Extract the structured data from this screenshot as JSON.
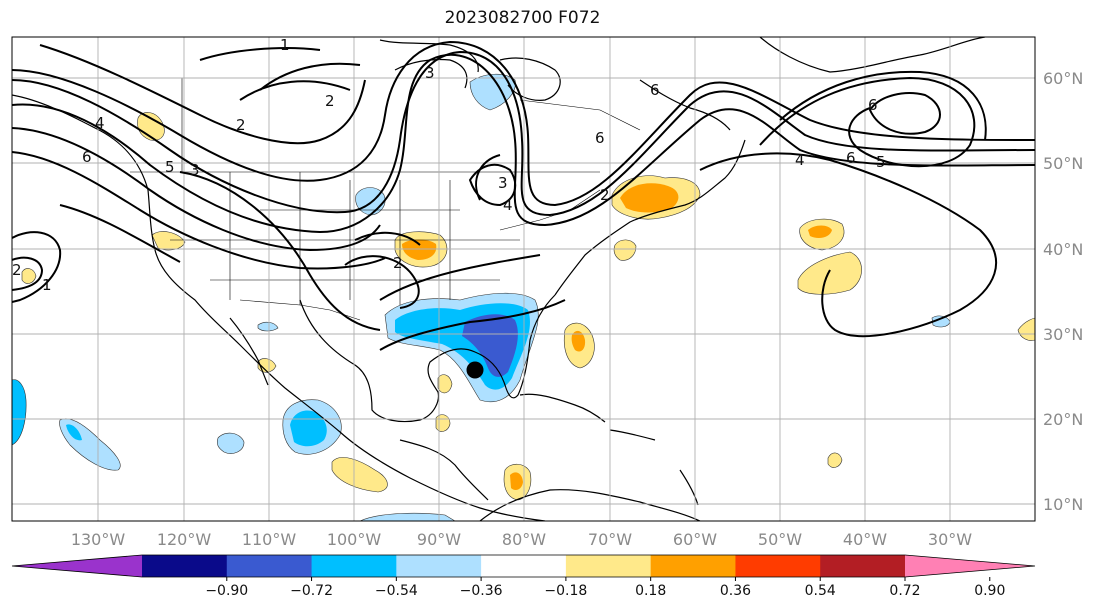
{
  "title": "2023082700 F072",
  "lon_ticks": [
    "130°W",
    "120°W",
    "110°W",
    "100°W",
    "90°W",
    "80°W",
    "70°W",
    "60°W",
    "50°W",
    "40°W",
    "30°W"
  ],
  "lat_ticks": [
    "60°N",
    "50°N",
    "40°N",
    "30°N",
    "20°N",
    "10°N"
  ],
  "colorbar": {
    "colors": [
      "#9a33cc",
      "#0a0a8a",
      "#3a5ad0",
      "#00bfff",
      "#aee0ff",
      "#ffffff",
      "#ffe98a",
      "#ffa000",
      "#ff3c00",
      "#b31e24",
      "#ff80b4"
    ],
    "labels": [
      "−0.90",
      "−0.72",
      "−0.54",
      "−0.36",
      "−0.18",
      "0.18",
      "0.36",
      "0.54",
      "0.72",
      "0.90"
    ]
  },
  "contour_labels": [
    "1",
    "2",
    "3",
    "4",
    "6",
    "6",
    "5",
    "6",
    "4",
    "6",
    "5",
    "3",
    "2",
    "6",
    "4",
    "2",
    "3",
    "2",
    "1",
    "2"
  ],
  "marker": "storm-center"
}
